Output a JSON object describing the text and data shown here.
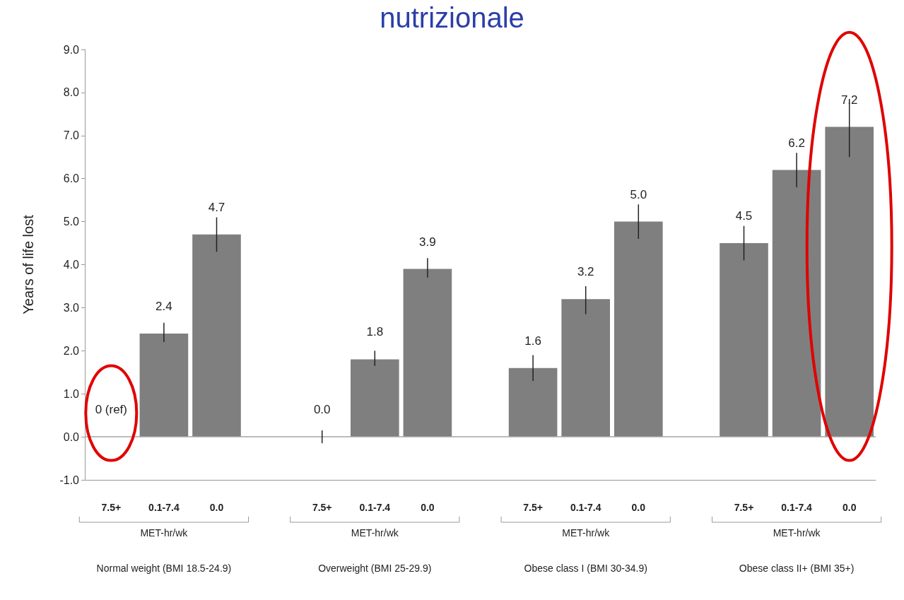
{
  "chart_data": {
    "type": "bar",
    "title": "nutrizionale",
    "ylabel": "Years of life lost",
    "categories": [
      "7.5+",
      "0.1-7.4",
      "0.0",
      null,
      "7.5+",
      "0.1-7.4",
      "0.0",
      null,
      "7.5+",
      "0.1-7.4",
      "0.0",
      null,
      "7.5+",
      "0.1-7.4",
      "0.0"
    ],
    "values": [
      0,
      2.4,
      4.7,
      null,
      0.0,
      1.8,
      3.9,
      null,
      1.6,
      3.2,
      5.0,
      null,
      4.5,
      6.2,
      7.2
    ],
    "value_labels": [
      "0 (ref)",
      "2.4",
      "4.7",
      null,
      "0.0",
      "1.8",
      "3.9",
      null,
      "1.6",
      "3.2",
      "5.0",
      null,
      "4.5",
      "6.2",
      "7.2"
    ],
    "errors": [
      null,
      [
        2.2,
        2.65
      ],
      [
        4.3,
        5.1
      ],
      null,
      [
        -0.15,
        0.15
      ],
      [
        1.65,
        2.0
      ],
      [
        3.7,
        4.15
      ],
      null,
      [
        1.3,
        1.9
      ],
      [
        2.85,
        3.5
      ],
      [
        4.6,
        5.4
      ],
      null,
      [
        4.1,
        4.9
      ],
      [
        5.8,
        6.6
      ],
      [
        6.5,
        7.85
      ]
    ],
    "color": "#7f7f7f",
    "ylim": [
      -1,
      9
    ],
    "yticks": [
      {
        "value": -1,
        "label": "-1.0"
      },
      {
        "value": 0,
        "label": "0.0"
      },
      {
        "value": 1,
        "label": "1.0"
      },
      {
        "value": 2,
        "label": "2.0"
      },
      {
        "value": 3,
        "label": "3.0"
      },
      {
        "value": 4,
        "label": "4.0"
      },
      {
        "value": 5,
        "label": "5.0"
      },
      {
        "value": 6,
        "label": "6.0"
      },
      {
        "value": 7,
        "label": "7.0"
      },
      {
        "value": 8,
        "label": "8.0"
      },
      {
        "value": 9,
        "label": "9.0"
      }
    ],
    "ref_lines": [
      {
        "axis": "y",
        "value": 0,
        "color": "#a6a6a6"
      }
    ],
    "annotations": [
      "MET-hr/wk",
      "MET-hr/wk",
      "MET-hr/wk",
      "MET-hr/wk",
      "Normal weight (BMI 18.5-24.9)",
      "Overweight (BMI 25-29.9)",
      "Obese class I (BMI 30-34.9)",
      "Obese class II+ (BMI 35+)"
    ],
    "grid": false
  }
}
